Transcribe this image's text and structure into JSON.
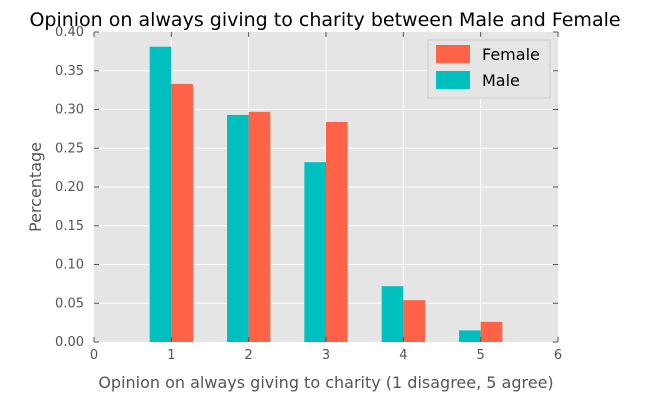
{
  "chart_data": {
    "type": "bar",
    "title": "Opinion on always giving to charity between Male and Female",
    "xlabel": "Opinion on always giving to charity (1 disagree, 5 agree)",
    "ylabel": "Percentage",
    "xlim": [
      0,
      6
    ],
    "ylim": [
      0,
      0.4
    ],
    "x_ticks": [
      "0",
      "1",
      "2",
      "3",
      "4",
      "5",
      "6"
    ],
    "y_ticks": [
      "0.00",
      "0.05",
      "0.10",
      "0.15",
      "0.20",
      "0.25",
      "0.30",
      "0.35",
      "0.40"
    ],
    "categories": [
      1,
      2,
      3,
      4,
      5
    ],
    "series": [
      {
        "name": "Male",
        "color": "#00bfbf",
        "values": [
          0.381,
          0.293,
          0.232,
          0.072,
          0.015
        ]
      },
      {
        "name": "Female",
        "color": "#ff6347",
        "values": [
          0.333,
          0.297,
          0.284,
          0.054,
          0.026
        ]
      }
    ],
    "legend_order": [
      "Female",
      "Male"
    ],
    "legend_position": "top-right",
    "grid": true,
    "background": "#e5e5e5"
  }
}
